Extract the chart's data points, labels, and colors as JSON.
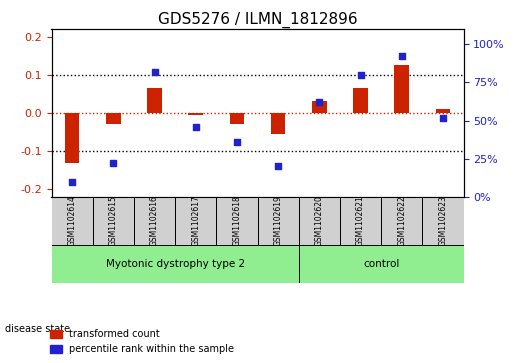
{
  "title": "GDS5276 / ILMN_1812896",
  "samples": [
    "GSM1102614",
    "GSM1102615",
    "GSM1102616",
    "GSM1102617",
    "GSM1102618",
    "GSM1102619",
    "GSM1102620",
    "GSM1102621",
    "GSM1102622",
    "GSM1102623"
  ],
  "red_values": [
    -0.13,
    -0.03,
    0.065,
    -0.005,
    -0.03,
    -0.055,
    0.03,
    0.065,
    0.125,
    0.01
  ],
  "blue_values": [
    10,
    22,
    82,
    46,
    36,
    20,
    62,
    80,
    92,
    52
  ],
  "disease_groups": [
    {
      "label": "Myotonic dystrophy type 2",
      "start": 0,
      "end": 6,
      "color": "#90EE90"
    },
    {
      "label": "control",
      "start": 6,
      "end": 10,
      "color": "#90EE90"
    }
  ],
  "ylim_left": [
    -0.22,
    0.22
  ],
  "ylim_right": [
    0,
    110
  ],
  "yticks_left": [
    -0.2,
    -0.1,
    0.0,
    0.1,
    0.2
  ],
  "yticks_right": [
    0,
    25,
    50,
    75,
    100
  ],
  "red_color": "#cc2200",
  "blue_color": "#2222cc",
  "legend_red_label": "transformed count",
  "legend_blue_label": "percentile rank within the sample",
  "disease_state_label": "disease state"
}
